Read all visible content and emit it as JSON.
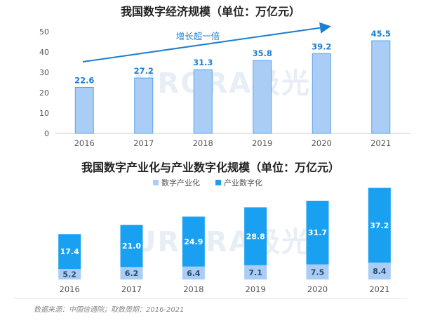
{
  "chart_data": [
    {
      "type": "bar",
      "title": "我国数字经济规模（单位：万亿元）",
      "categories": [
        "2016",
        "2017",
        "2018",
        "2019",
        "2020",
        "2021"
      ],
      "values": [
        22.6,
        27.2,
        31.3,
        35.8,
        39.2,
        45.5
      ],
      "ylim": [
        0,
        50
      ],
      "yticks": [
        0,
        10,
        20,
        30,
        40,
        50
      ],
      "annotation": "增长超一倍",
      "colors": {
        "fill": "#a9cdf5",
        "stroke": "#5aa3e8",
        "label": "#1e7fd0"
      }
    },
    {
      "type": "bar",
      "stacked": true,
      "title": "我国数字产业化与产业数字化规模（单位：万亿元）",
      "categories": [
        "2016",
        "2017",
        "2018",
        "2019",
        "2020",
        "2021"
      ],
      "series": [
        {
          "name": "数字产业化",
          "values": [
            5.2,
            6.2,
            6.4,
            7.1,
            7.5,
            8.4
          ],
          "color": "#a9cdf5"
        },
        {
          "name": "产业数字化",
          "values": [
            17.4,
            21.0,
            24.9,
            28.8,
            31.7,
            37.2
          ],
          "color": "#1aa0f0"
        }
      ],
      "legend_position": "top"
    }
  ],
  "watermark": "URORA极光",
  "source": "数据来源：中国信通院；取数周期：2016-2021"
}
